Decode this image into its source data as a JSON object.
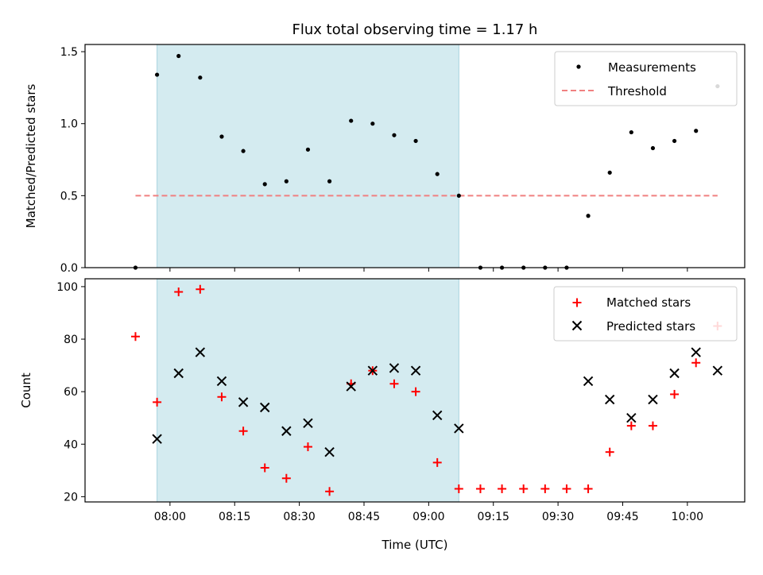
{
  "chart_data": [
    {
      "type": "scatter",
      "title": "Flux total observing time = 1.17 h",
      "xlabel": "",
      "ylabel": "Matched/Predicted stars",
      "ylim": [
        0,
        1.55
      ],
      "yticks": [
        "0.0",
        "0.5",
        "1.0",
        "1.5"
      ],
      "ytick_values": [
        0,
        0.5,
        1.0,
        1.5
      ],
      "legend_position": "top-right",
      "shaded_interval": [
        "07:57",
        "09:07"
      ],
      "shade_color": "#d4ebf0",
      "series": [
        {
          "name": "Measurements",
          "marker": "dot",
          "color": "#000000",
          "x": [
            "07:52",
            "07:57",
            "08:02",
            "08:07",
            "08:12",
            "08:17",
            "08:22",
            "08:27",
            "08:32",
            "08:37",
            "08:42",
            "08:47",
            "08:52",
            "08:57",
            "09:02",
            "09:07",
            "09:12",
            "09:17",
            "09:22",
            "09:27",
            "09:32",
            "09:37",
            "09:42",
            "09:47",
            "09:52",
            "09:57",
            "10:02",
            "10:07"
          ],
          "y": [
            0.0,
            1.34,
            1.47,
            1.32,
            0.91,
            0.81,
            0.58,
            0.6,
            0.82,
            0.6,
            1.02,
            1.0,
            0.92,
            0.88,
            0.65,
            0.5,
            0.0,
            0.0,
            0.0,
            0.0,
            0.0,
            0.36,
            0.66,
            0.94,
            0.83,
            0.88,
            0.95,
            1.26
          ]
        },
        {
          "name": "Threshold",
          "marker": "dashed-line",
          "color": "#f08080",
          "x": [
            "07:52",
            "10:07"
          ],
          "y": [
            0.5,
            0.5
          ]
        }
      ]
    },
    {
      "type": "scatter",
      "title": "",
      "xlabel": "Time (UTC)",
      "ylabel": "Count",
      "ylim": [
        18,
        103
      ],
      "yticks": [
        "20",
        "40",
        "60",
        "80",
        "100"
      ],
      "ytick_values": [
        20,
        40,
        60,
        80,
        100
      ],
      "xticks": [
        "08:00",
        "08:15",
        "08:30",
        "08:45",
        "09:00",
        "09:15",
        "09:30",
        "09:45",
        "10:00"
      ],
      "legend_position": "top-right",
      "series": [
        {
          "name": "Matched stars",
          "marker": "plus",
          "color": "#ff0000",
          "x": [
            "07:52",
            "07:57",
            "08:02",
            "08:07",
            "08:12",
            "08:17",
            "08:22",
            "08:27",
            "08:32",
            "08:37",
            "08:42",
            "08:47",
            "08:52",
            "08:57",
            "09:02",
            "09:07",
            "09:12",
            "09:17",
            "09:22",
            "09:27",
            "09:32",
            "09:37",
            "09:42",
            "09:47",
            "09:52",
            "09:57",
            "10:02",
            "10:07"
          ],
          "y": [
            81,
            56,
            98,
            99,
            58,
            45,
            31,
            27,
            39,
            22,
            63,
            68,
            63,
            60,
            33,
            23,
            23,
            23,
            23,
            23,
            23,
            23,
            37,
            47,
            47,
            59,
            71,
            85
          ]
        },
        {
          "name": "Predicted stars",
          "marker": "x",
          "color": "#000000",
          "x": [
            "07:57",
            "08:02",
            "08:07",
            "08:12",
            "08:17",
            "08:22",
            "08:27",
            "08:32",
            "08:37",
            "08:42",
            "08:47",
            "08:52",
            "08:57",
            "09:02",
            "09:07",
            "09:37",
            "09:42",
            "09:47",
            "09:52",
            "09:57",
            "10:02",
            "10:07"
          ],
          "y": [
            42,
            67,
            75,
            64,
            56,
            54,
            45,
            48,
            37,
            62,
            68,
            69,
            68,
            51,
            46,
            64,
            57,
            50,
            57,
            67,
            75,
            68
          ]
        }
      ]
    }
  ]
}
